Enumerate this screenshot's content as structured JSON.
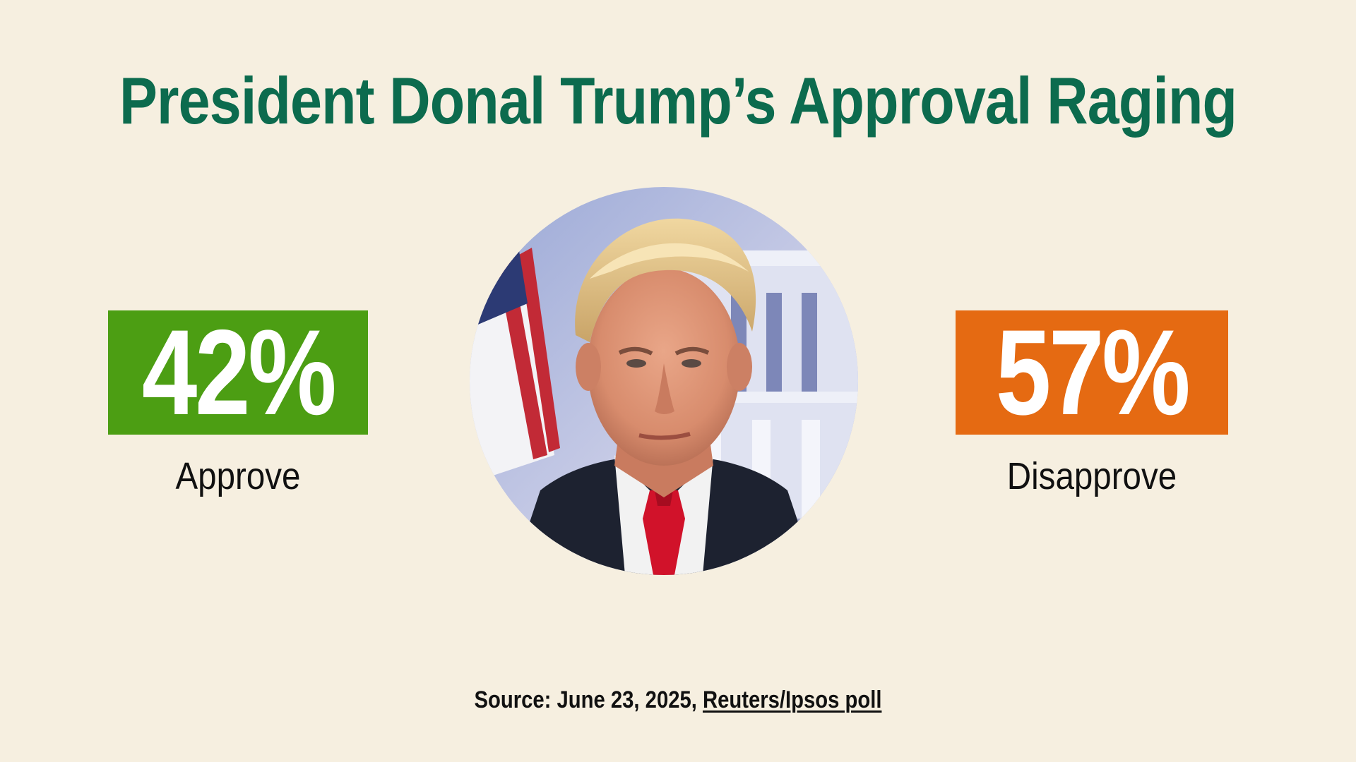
{
  "colors": {
    "background": "#f6efe0",
    "title": "#0c6b4e",
    "approve": "#4c9e13",
    "disapprove": "#e56a12",
    "text": "#111111"
  },
  "title": "President Donal Trump’s Approval Raging",
  "approve": {
    "value": "42%",
    "label": "Approve"
  },
  "disapprove": {
    "value": "57%",
    "label": "Disapprove"
  },
  "portrait": {
    "icon": "portrait-photo"
  },
  "source": {
    "prefix": "Source: June 23, 2025, ",
    "link_text": "Reuters/Ipsos poll"
  }
}
